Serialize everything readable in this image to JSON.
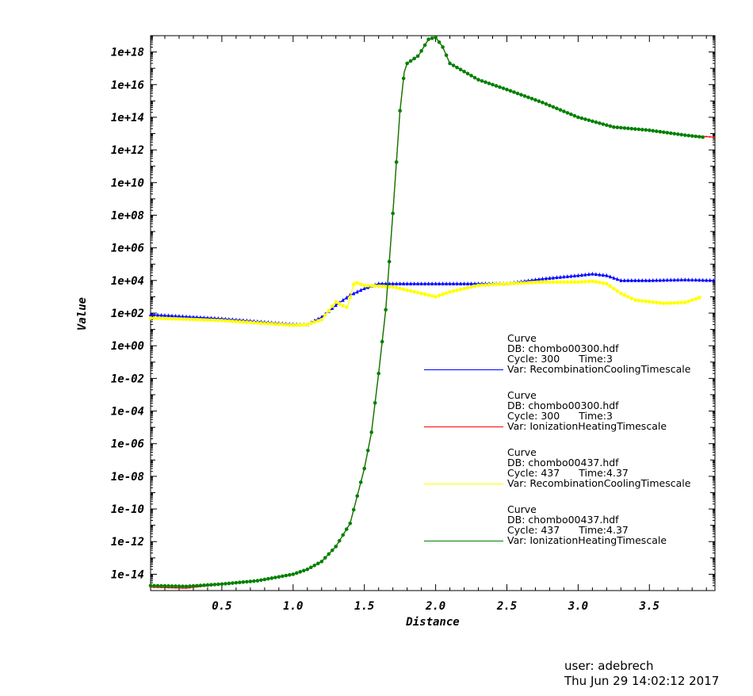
{
  "chart_data": {
    "type": "line",
    "title": "",
    "xlabel": "Distance",
    "ylabel": "Value",
    "xlim": [
      0,
      3.96
    ],
    "ylim": [
      1e-15,
      1e+19
    ],
    "yscale": "log",
    "grid": false,
    "legend_placement": "left",
    "xticks": [
      "0.5",
      "1.0",
      "1.5",
      "2.0",
      "2.5",
      "3.0",
      "3.5"
    ],
    "xtick_values": [
      0.5,
      1.0,
      1.5,
      2.0,
      2.5,
      3.0,
      3.5
    ],
    "yticks": [
      "1e+18",
      "1e+16",
      "1e+14",
      "1e+12",
      "1e+10",
      "1e+08",
      "1e+06",
      "1e+04",
      "1e+02",
      "1e+00",
      "1e-02",
      "1e-04",
      "1e-06",
      "1e-08",
      "1e-10",
      "1e-12",
      "1e-14"
    ],
    "ytick_values": [
      1e+18,
      1e+16,
      100000000000000.0,
      1000000000000.0,
      10000000000.0,
      100000000.0,
      1000000.0,
      10000.0,
      100.0,
      1,
      0.01,
      0.0001,
      1e-06,
      1e-08,
      1e-10,
      1e-12,
      1e-14
    ],
    "series": [
      {
        "color": "#0000ff",
        "marker": "triangle",
        "x": [
          0,
          0.5,
          1.0,
          1.1,
          1.2,
          1.3,
          1.4,
          1.5,
          1.6,
          2.0,
          2.5,
          2.75,
          3.0,
          3.1,
          3.2,
          3.3,
          3.5,
          3.75,
          3.96
        ],
        "y": [
          80,
          45,
          20,
          20,
          56,
          300,
          1250,
          3200,
          6300,
          6300,
          6300,
          12500,
          20000,
          25000,
          20000,
          10000,
          10000,
          11000,
          10000
        ]
      },
      {
        "color": "#ff0000",
        "marker": "point",
        "x": [
          0,
          0.25,
          0.5,
          0.75,
          1.0,
          1.1,
          1.2,
          1.3,
          1.4,
          1.5,
          1.55,
          1.6,
          1.65,
          1.7,
          1.75,
          1.78,
          1.8,
          1.88,
          1.95,
          2.0,
          2.05,
          2.1,
          2.3,
          2.5,
          2.75,
          3.0,
          3.25,
          3.5,
          3.75,
          3.96
        ],
        "y": [
          1.6e-15,
          1.4e-15,
          2.5e-15,
          4e-15,
          1e-14,
          2e-14,
          6e-14,
          5e-13,
          1.3e-11,
          3e-08,
          5e-06,
          0.02,
          160,
          130000000.0,
          250000000000000.0,
          6e+16,
          2e+17,
          6e+17,
          6e+18,
          8e+18,
          2e+18,
          2e+17,
          2e+16,
          5000000000000000.0,
          800000000000000.0,
          100000000000000.0,
          25000000000000.0,
          16000000000000.0,
          8000000000000.0,
          6000000000000.0
        ]
      },
      {
        "color": "#ffff00",
        "marker": "circle",
        "x": [
          0,
          0.5,
          1.0,
          1.1,
          1.2,
          1.3,
          1.35,
          1.38,
          1.43,
          1.5,
          1.7,
          1.9,
          2.0,
          2.1,
          2.3,
          2.5,
          2.75,
          3.0,
          3.1,
          3.2,
          3.3,
          3.4,
          3.6,
          3.75,
          3.87
        ],
        "y": [
          50,
          35,
          18,
          20,
          40,
          500,
          280,
          220,
          8000,
          5000,
          4000,
          1600,
          1000,
          2000,
          5000,
          6300,
          8000,
          8000,
          9000,
          6300,
          1600,
          630,
          400,
          450,
          1000
        ]
      },
      {
        "color": "#008000",
        "marker": "circle",
        "x": [
          0,
          0.25,
          0.5,
          0.75,
          1.0,
          1.1,
          1.2,
          1.3,
          1.4,
          1.5,
          1.55,
          1.6,
          1.65,
          1.7,
          1.75,
          1.78,
          1.8,
          1.88,
          1.95,
          2.0,
          2.05,
          2.1,
          2.3,
          2.5,
          2.75,
          3.0,
          3.25,
          3.5,
          3.75,
          3.88
        ],
        "y": [
          2e-15,
          1.8e-15,
          2.5e-15,
          4e-15,
          1e-14,
          2e-14,
          6e-14,
          5e-13,
          1.3e-11,
          3e-08,
          5e-06,
          0.02,
          160,
          130000000.0,
          250000000000000.0,
          6e+16,
          2e+17,
          6e+17,
          6e+18,
          8e+18,
          2e+18,
          2e+17,
          2e+16,
          5000000000000000.0,
          800000000000000.0,
          100000000000000.0,
          25000000000000.0,
          16000000000000.0,
          8000000000000.0,
          6000000000000.0
        ]
      }
    ]
  },
  "legend": [
    {
      "type": "Curve",
      "db": "DB: chombo00300.hdf",
      "cycle": "Cycle: 300",
      "time": "Time:3",
      "var": "Var: RecombinationCoolingTimescale",
      "color": "#0000ff"
    },
    {
      "type": "Curve",
      "db": "DB: chombo00300.hdf",
      "cycle": "Cycle: 300",
      "time": "Time:3",
      "var": "Var: IonizationHeatingTimescale",
      "color": "#ff0000"
    },
    {
      "type": "Curve",
      "db": "DB: chombo00437.hdf",
      "cycle": "Cycle: 437",
      "time": "Time:4.37",
      "var": "Var: RecombinationCoolingTimescale",
      "color": "#ffff00"
    },
    {
      "type": "Curve",
      "db": "DB: chombo00437.hdf",
      "cycle": "Cycle: 437",
      "time": "Time:4.37",
      "var": "Var: IonizationHeatingTimescale",
      "color": "#008000"
    }
  ],
  "footer": {
    "user": "user: adebrech",
    "date": "Thu Jun 29 14:02:12 2017"
  }
}
